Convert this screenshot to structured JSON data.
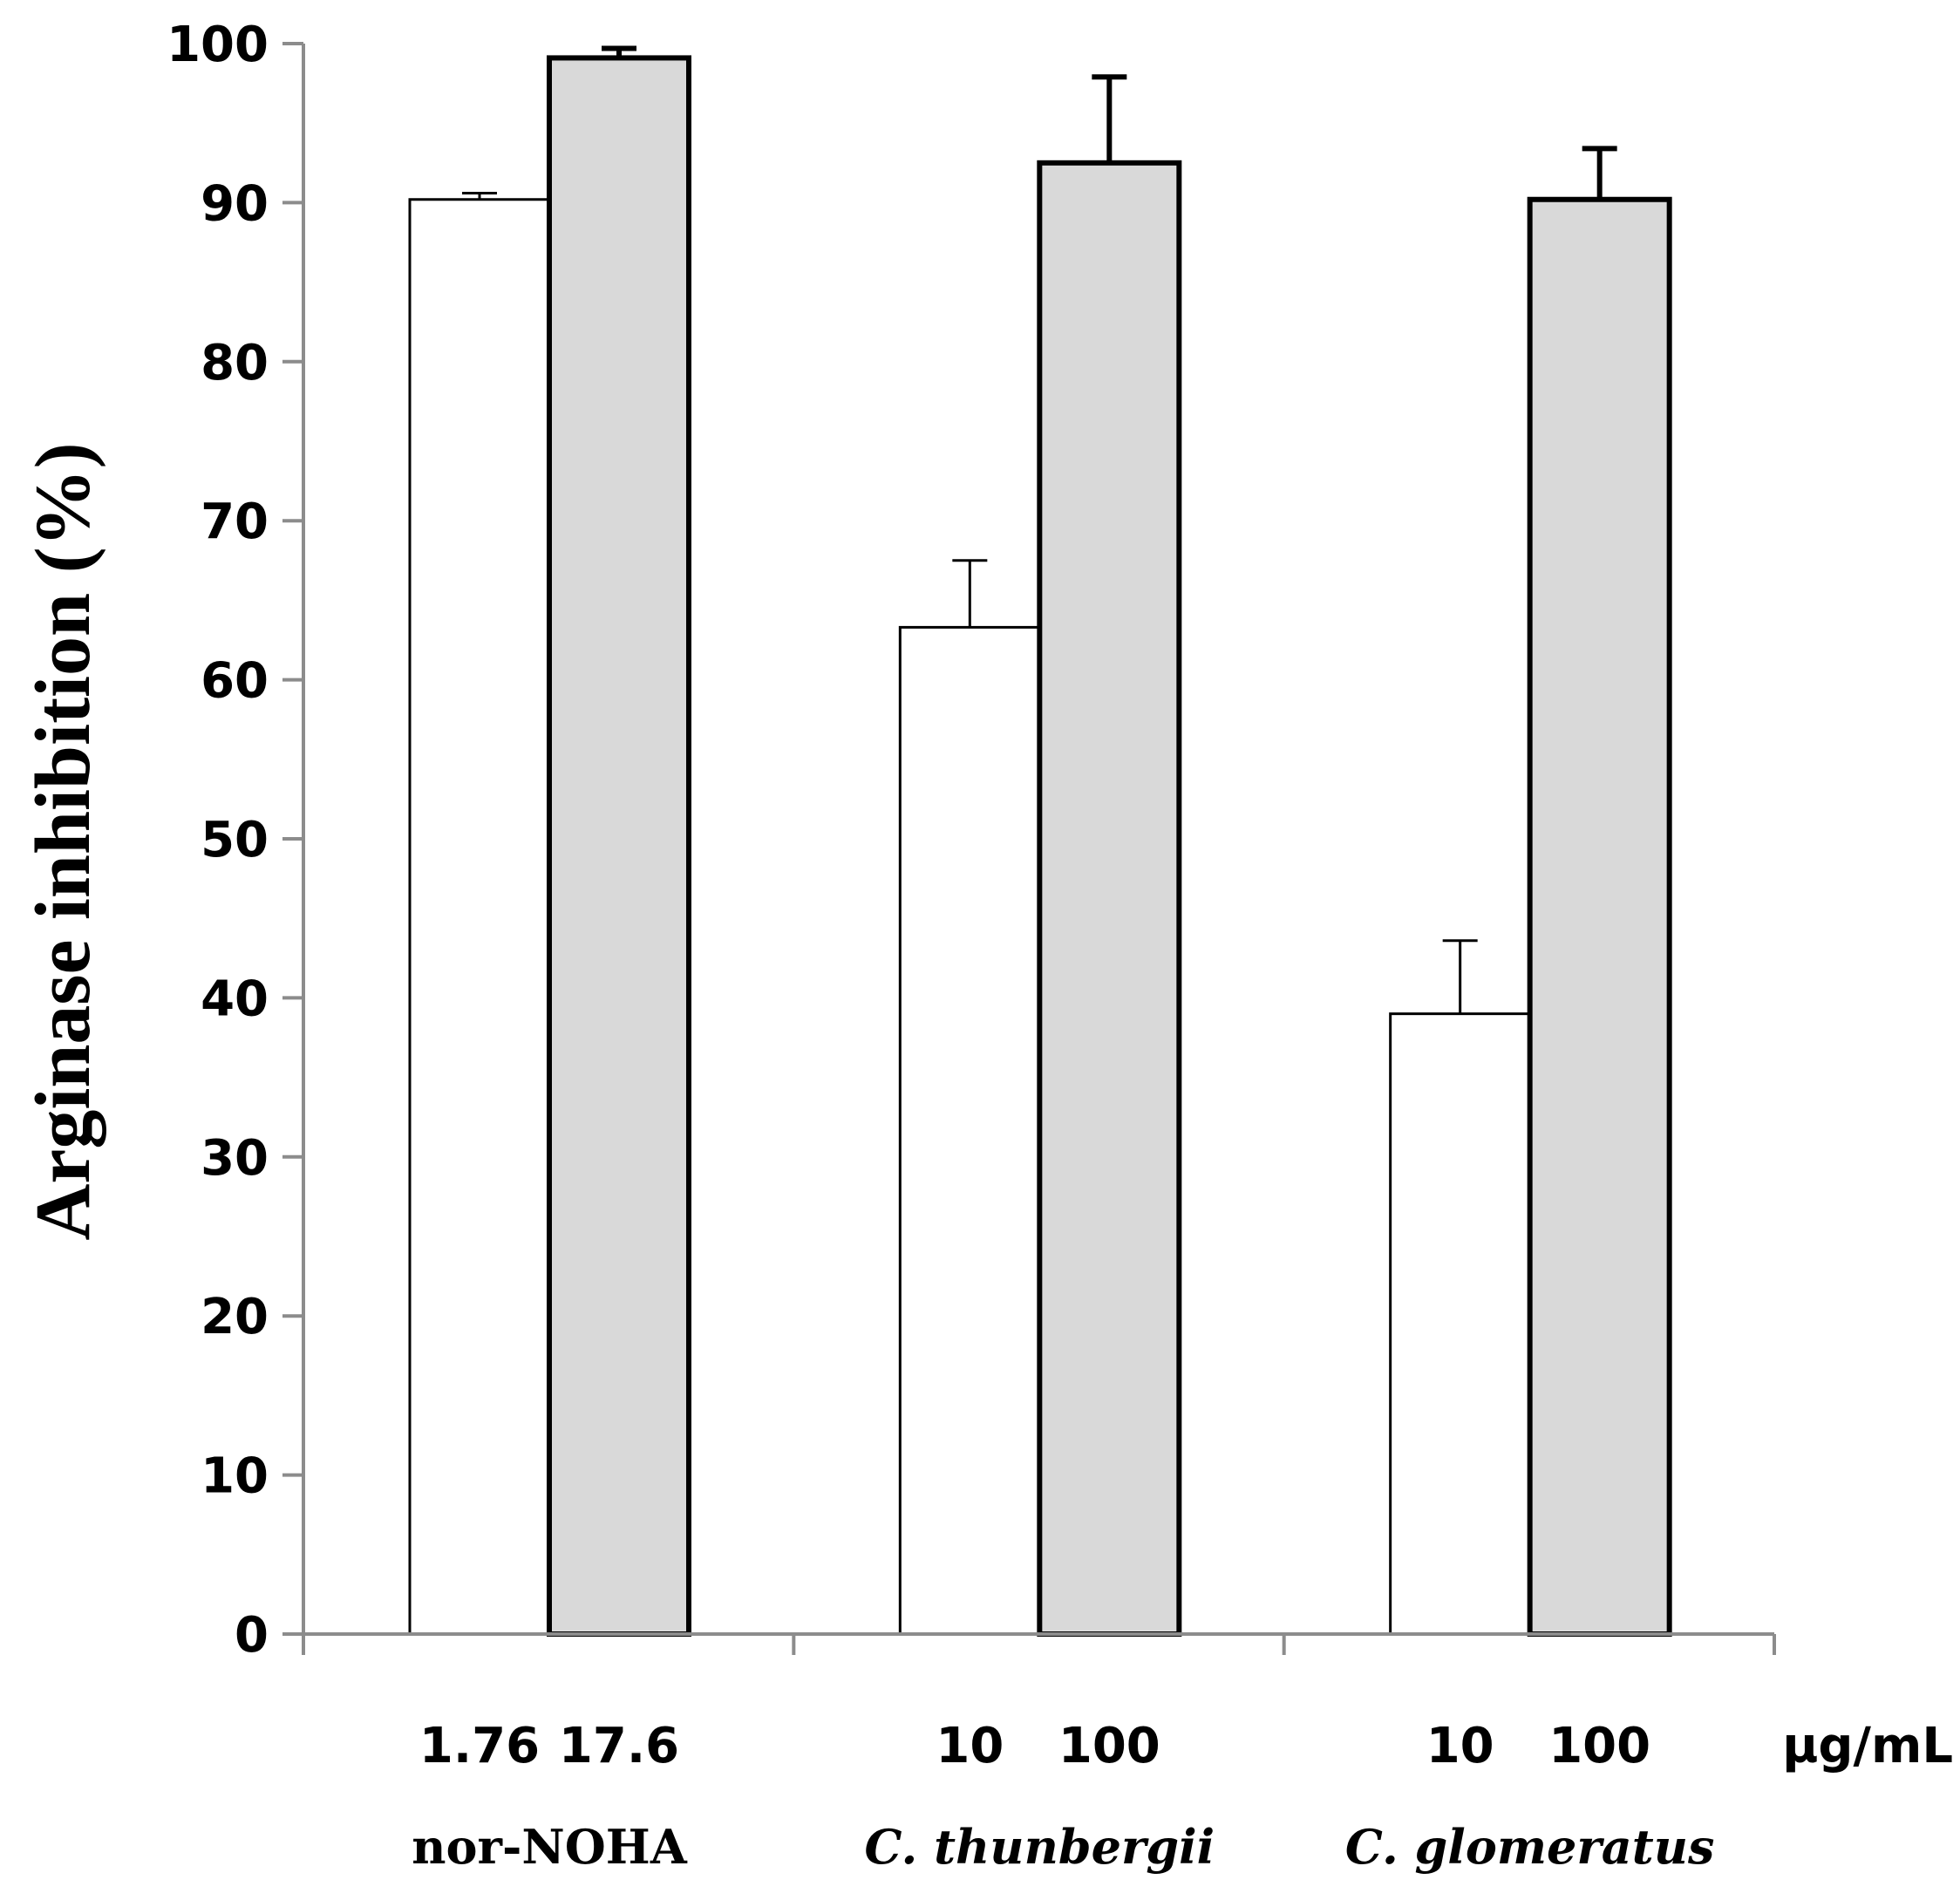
{
  "chart_data": {
    "type": "bar",
    "title": "",
    "xlabel": "",
    "ylabel": "Arginase inhibition (%)",
    "ylim": [
      0,
      100
    ],
    "yticks": [
      "0",
      "10",
      "20",
      "30",
      "40",
      "50",
      "60",
      "70",
      "80",
      "90",
      "100"
    ],
    "unit_label": "µg/mL",
    "groups": [
      {
        "name": "nor-NOHA",
        "italic": false,
        "bars": [
          {
            "dose": "1.76",
            "value": 90.2,
            "error": 0.4,
            "fill": "#ffffff"
          },
          {
            "dose": "17.6",
            "value": 99.1,
            "error": 0.6,
            "fill": "#d9d9d9"
          }
        ]
      },
      {
        "name": "C. thunbergii",
        "italic": true,
        "bars": [
          {
            "dose": "10",
            "value": 63.3,
            "error": 4.2,
            "fill": "#ffffff"
          },
          {
            "dose": "100",
            "value": 92.5,
            "error": 5.4,
            "fill": "#d9d9d9"
          }
        ]
      },
      {
        "name": "C. glomeratus",
        "italic": true,
        "bars": [
          {
            "dose": "10",
            "value": 39.0,
            "error": 4.6,
            "fill": "#ffffff"
          },
          {
            "dose": "100",
            "value": 90.2,
            "error": 3.2,
            "fill": "#d9d9d9"
          }
        ]
      }
    ]
  }
}
